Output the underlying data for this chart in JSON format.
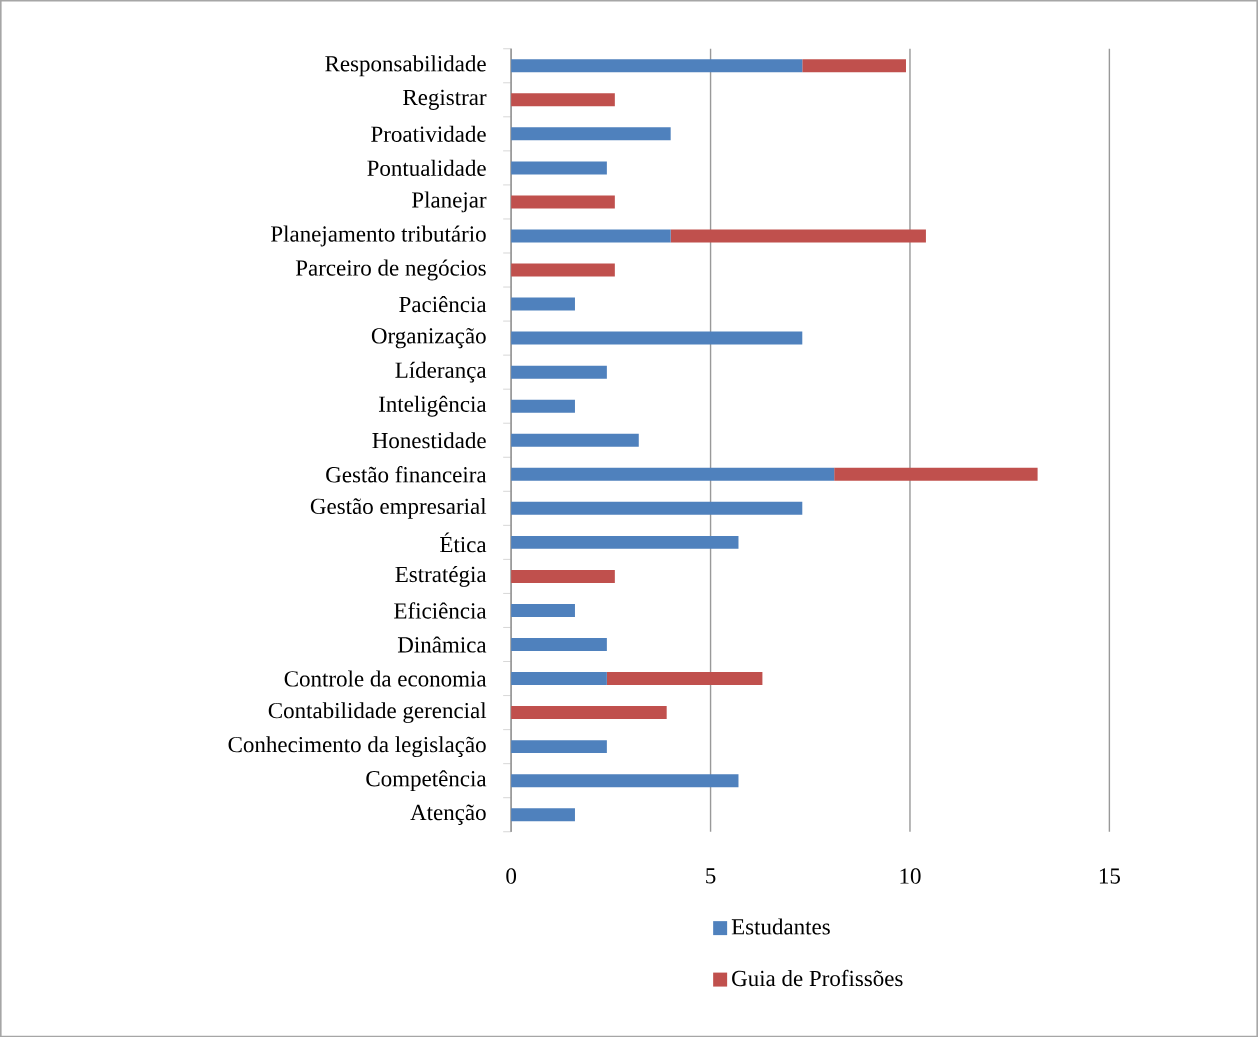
{
  "chart_data": {
    "type": "bar",
    "orientation": "horizontal",
    "stacked": true,
    "categories": [
      "Responsabilidade",
      "Registrar",
      "Proatividade",
      "Pontualidade",
      "Planejar",
      "Planejamento tributário",
      "Parceiro de negócios",
      "Paciência",
      "Organização",
      "Líderança",
      "Inteligência",
      "Honestidade",
      "Gestão financeira",
      "Gestão empresarial",
      "Ética",
      "Estratégia",
      "Eficiência",
      "Dinâmica",
      "Controle da economia",
      "Contabilidade gerencial",
      "Conhecimento da legislação",
      "Competência",
      "Atenção"
    ],
    "series": [
      {
        "name": "Estudantes",
        "color": "#4f81bd",
        "values": [
          7.3,
          null,
          4.0,
          2.4,
          null,
          4.0,
          null,
          1.6,
          7.3,
          2.4,
          1.6,
          3.2,
          8.1,
          7.3,
          5.7,
          null,
          1.6,
          2.4,
          2.4,
          null,
          2.4,
          5.7,
          1.6
        ]
      },
      {
        "name": "Guia de Profissões",
        "color": "#c0504d",
        "values": [
          2.6,
          2.6,
          null,
          null,
          2.6,
          6.4,
          2.6,
          null,
          null,
          null,
          null,
          null,
          5.1,
          null,
          null,
          2.6,
          null,
          null,
          3.9,
          3.9,
          null,
          null,
          null
        ]
      }
    ],
    "xlim": [
      0,
      15
    ],
    "xticks": [
      0,
      5,
      10,
      15
    ],
    "grid": "x",
    "legend": "bottom"
  }
}
